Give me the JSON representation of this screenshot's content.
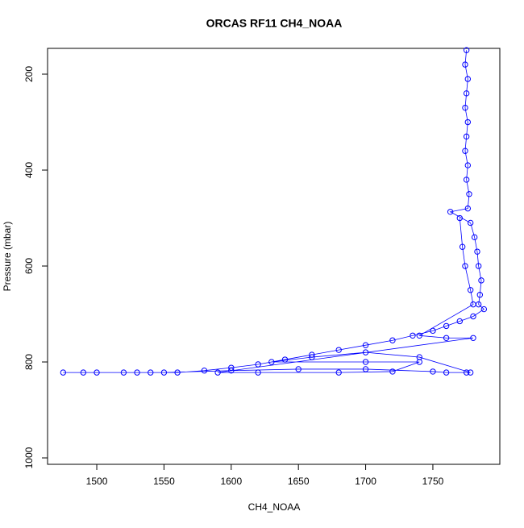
{
  "chart_data": {
    "type": "scatter",
    "title": "ORCAS RF11 CH4_NOAA",
    "x_label": "CH4_NOAA",
    "y_label": "Pressure (mbar)",
    "xlim": [
      1463.4,
      1799.8
    ],
    "ylim": [
      1013.4,
      146.2
    ],
    "xticks": [
      1500,
      1550,
      1600,
      1650,
      1700,
      1750
    ],
    "yticks": [
      200,
      400,
      600,
      800,
      1000
    ],
    "series": [
      {
        "color": "#0000ff",
        "x": [
          1775,
          1774,
          1776,
          1775,
          1774,
          1776,
          1775,
          1774,
          1776,
          1775,
          1777,
          1776,
          1763,
          1778,
          1781,
          1783,
          1784,
          1786,
          1785,
          1784,
          1788,
          1780,
          1770,
          1760,
          1750,
          1735,
          1720,
          1700,
          1680,
          1660,
          1640,
          1620,
          1600,
          1580,
          1560,
          1540,
          1520,
          1500,
          1475,
          1490,
          1530,
          1550,
          1600,
          1650,
          1700,
          1750,
          1760,
          1775,
          1778,
          1740,
          1700,
          1660,
          1630,
          1700,
          1740,
          1720,
          1680,
          1620,
          1590,
          1780,
          1760,
          1740,
          1780,
          1778,
          1774,
          1772,
          1770
        ],
        "y": [
          150,
          180,
          210,
          240,
          270,
          300,
          330,
          360,
          390,
          420,
          450,
          480,
          487,
          510,
          540,
          570,
          600,
          630,
          660,
          680,
          690,
          705,
          715,
          725,
          735,
          745,
          755,
          765,
          775,
          785,
          795,
          805,
          812,
          818,
          822,
          822,
          822,
          822,
          822,
          822,
          822,
          822,
          818,
          815,
          815,
          820,
          822,
          822,
          822,
          790,
          780,
          790,
          800,
          800,
          800,
          820,
          822,
          822,
          822,
          750,
          750,
          745,
          680,
          650,
          600,
          560,
          500
        ]
      }
    ]
  }
}
